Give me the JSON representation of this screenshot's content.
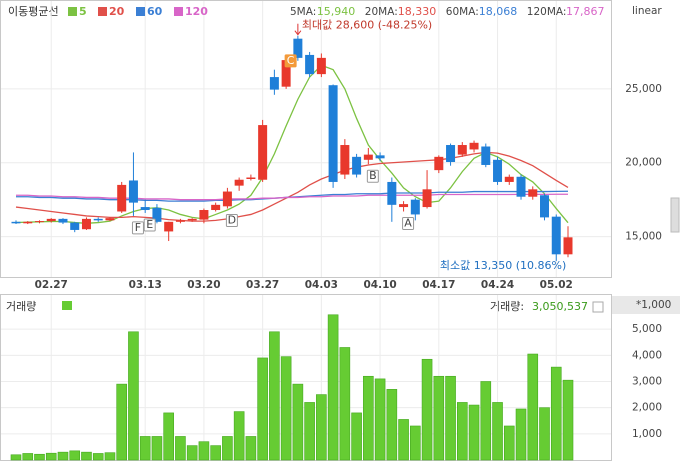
{
  "chart_data": [
    {
      "type": "candlestick",
      "title": "이동평균선",
      "scale_label": "linear",
      "up_color": "#e8382c",
      "down_color": "#1f7fd8",
      "categories": [
        null,
        null,
        null,
        "02.27",
        null,
        null,
        null,
        null,
        null,
        null,
        null,
        "03.13",
        null,
        null,
        null,
        null,
        "03.20",
        null,
        null,
        null,
        null,
        "03.27",
        null,
        null,
        null,
        null,
        "04.03",
        null,
        null,
        null,
        null,
        "04.10",
        null,
        null,
        null,
        null,
        "04.17",
        null,
        null,
        null,
        null,
        "04.24",
        null,
        null,
        null,
        null,
        "05.02",
        null
      ],
      "open": [
        16000,
        15900,
        16000,
        16050,
        16200,
        15950,
        15500,
        16200,
        16100,
        16700,
        18800,
        17000,
        16950,
        15350,
        16000,
        16100,
        16150,
        16800,
        17050,
        18450,
        18900,
        18850,
        25800,
        25150,
        28400,
        27300,
        26000,
        25250,
        19200,
        20400,
        20200,
        20500,
        18700,
        17000,
        17500,
        17000,
        19500,
        21200,
        20550,
        20900,
        21100,
        20200,
        18700,
        19050,
        17700,
        17800,
        16350,
        13800
      ],
      "high": [
        16100,
        16050,
        16100,
        16250,
        16250,
        16000,
        16300,
        16300,
        16300,
        18700,
        20700,
        17500,
        17200,
        16000,
        16200,
        16250,
        16900,
        17300,
        18300,
        19000,
        19200,
        22900,
        26300,
        27300,
        28600,
        27500,
        27400,
        25300,
        21600,
        20600,
        21000,
        20700,
        19000,
        17400,
        17600,
        19500,
        20500,
        21300,
        21400,
        21500,
        21300,
        20400,
        19200,
        19200,
        18400,
        17900,
        16500,
        15700
      ],
      "low": [
        15850,
        15850,
        15900,
        15950,
        15850,
        15300,
        15450,
        16000,
        16050,
        16600,
        16400,
        16600,
        15900,
        14700,
        15900,
        16000,
        15900,
        16700,
        16900,
        18100,
        18800,
        18700,
        24600,
        25000,
        26900,
        25800,
        25800,
        18300,
        18900,
        19000,
        19900,
        20100,
        16000,
        16700,
        16100,
        16900,
        19300,
        19800,
        20400,
        20700,
        19700,
        18500,
        18500,
        17500,
        17500,
        16100,
        13350,
        13600
      ],
      "close": [
        15900,
        16000,
        16050,
        16200,
        15950,
        15450,
        16200,
        16100,
        16250,
        18500,
        17300,
        16800,
        16000,
        16000,
        16100,
        16200,
        16800,
        17150,
        18050,
        18850,
        19000,
        22550,
        24950,
        26950,
        27100,
        26000,
        27100,
        18700,
        21200,
        19200,
        20550,
        20300,
        17150,
        17200,
        16500,
        18200,
        20400,
        20050,
        21200,
        21350,
        19850,
        18700,
        19050,
        17700,
        18200,
        16300,
        13800,
        14950
      ],
      "ylim": [
        12400,
        29800
      ],
      "yticks": [
        {
          "value": 15000,
          "label": "15,000"
        },
        {
          "value": 20000,
          "label": "20,000"
        },
        {
          "value": 25000,
          "label": "25,000"
        }
      ],
      "series": [
        {
          "name": "5",
          "header": "5MA:",
          "current_label": "15,940",
          "color": "#7cc242",
          "values": [
            15950,
            15980,
            16000,
            16020,
            16030,
            15950,
            15900,
            15950,
            16050,
            16400,
            16700,
            16900,
            16950,
            16800,
            16500,
            16300,
            16200,
            16500,
            16800,
            17200,
            17800,
            19000,
            20600,
            22500,
            24300,
            25800,
            26600,
            26300,
            25000,
            23000,
            21200,
            20200,
            19300,
            18300,
            17700,
            17300,
            17400,
            18300,
            19400,
            20300,
            20700,
            20400,
            19900,
            19200,
            18700,
            17900,
            16900,
            15940
          ]
        },
        {
          "name": "20",
          "header": "20MA:",
          "current_label": "18,330",
          "color": "#e0504a",
          "values": [
            17000,
            16900,
            16800,
            16700,
            16600,
            16500,
            16400,
            16350,
            16300,
            16300,
            16350,
            16300,
            16250,
            16150,
            16100,
            16050,
            16050,
            16100,
            16200,
            16350,
            16500,
            16800,
            17200,
            17600,
            18000,
            18500,
            18900,
            19200,
            19500,
            19700,
            19850,
            19950,
            20000,
            20050,
            20100,
            20150,
            20200,
            20300,
            20450,
            20600,
            20700,
            20650,
            20450,
            20150,
            19800,
            19300,
            18800,
            18330
          ]
        },
        {
          "name": "60",
          "header": "60MA:",
          "current_label": "18,068",
          "color": "#3b7fd4",
          "values": [
            17700,
            17700,
            17650,
            17650,
            17600,
            17600,
            17550,
            17550,
            17500,
            17500,
            17500,
            17450,
            17450,
            17400,
            17400,
            17400,
            17400,
            17450,
            17450,
            17500,
            17500,
            17550,
            17600,
            17650,
            17700,
            17750,
            17800,
            17850,
            17850,
            17900,
            17900,
            17900,
            17950,
            17950,
            17950,
            17950,
            18000,
            18000,
            18000,
            18050,
            18050,
            18050,
            18050,
            18050,
            18050,
            18050,
            18060,
            18068
          ]
        },
        {
          "name": "120",
          "header": "120MA:",
          "current_label": "17,867",
          "color": "#d865c8",
          "values": [
            17800,
            17800,
            17750,
            17750,
            17700,
            17700,
            17650,
            17650,
            17600,
            17600,
            17600,
            17550,
            17550,
            17550,
            17500,
            17500,
            17500,
            17500,
            17550,
            17550,
            17550,
            17600,
            17600,
            17650,
            17650,
            17700,
            17700,
            17750,
            17750,
            17750,
            17800,
            17800,
            17800,
            17800,
            17800,
            17800,
            17850,
            17850,
            17850,
            17850,
            17850,
            17850,
            17850,
            17860,
            17860,
            17860,
            17865,
            17867
          ]
        }
      ],
      "max_label": "최대값 28,600 (-48.25%)",
      "min_label": "최소값 13,350 (10.86%)",
      "markers": [
        {
          "text": "F",
          "index": 10
        },
        {
          "text": "E",
          "index": 11
        },
        {
          "text": "D",
          "index": 18
        },
        {
          "text": "C",
          "index": 23
        },
        {
          "text": "B",
          "index": 30
        },
        {
          "text": "A",
          "index": 33
        }
      ]
    },
    {
      "type": "bar",
      "title": "거래량",
      "header": "거래량:",
      "current_label": "3,050,537",
      "unit_label": "*1,000",
      "color": "#66cc33",
      "values": [
        200,
        250,
        220,
        260,
        300,
        350,
        300,
        250,
        280,
        2900,
        4900,
        900,
        900,
        1800,
        900,
        550,
        700,
        550,
        900,
        1850,
        900,
        3900,
        4900,
        3950,
        2900,
        2200,
        2500,
        5550,
        4300,
        1800,
        3200,
        3100,
        2700,
        1550,
        1300,
        3850,
        3200,
        3200,
        2200,
        2100,
        3000,
        2200,
        1300,
        1950,
        4050,
        2000,
        3550,
        3050.537
      ],
      "ylim": [
        0,
        6000
      ],
      "yticks": [
        {
          "value": 1000,
          "label": "1,000"
        },
        {
          "value": 2000,
          "label": "2,000"
        },
        {
          "value": 3000,
          "label": "3,000"
        },
        {
          "value": 4000,
          "label": "4,000"
        },
        {
          "value": 5000,
          "label": "5,000"
        }
      ]
    }
  ]
}
